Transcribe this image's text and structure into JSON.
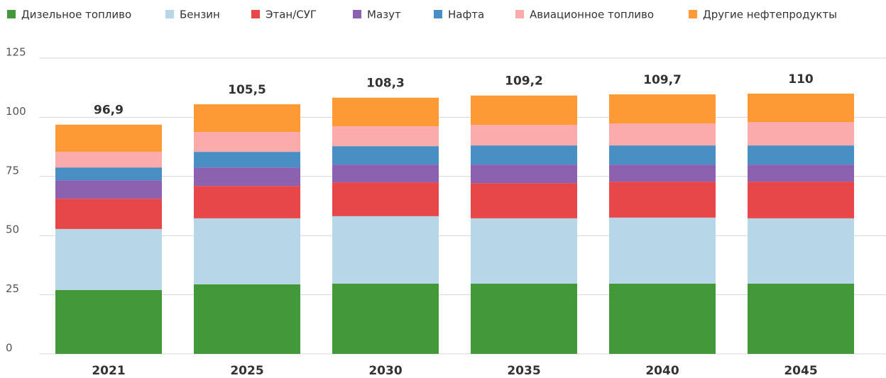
{
  "chart_data": {
    "type": "stacked_bar",
    "categories": [
      "2021",
      "2025",
      "2030",
      "2035",
      "2040",
      "2045"
    ],
    "series": [
      {
        "name": "Дизельное топливо",
        "color": "#43993a",
        "values": [
          27,
          29.4,
          29.7,
          29.7,
          29.7,
          29.7
        ]
      },
      {
        "name": "Бензин",
        "color": "#b7d7e8",
        "values": [
          25.8,
          27.9,
          28.5,
          27.6,
          27.9,
          27.6
        ]
      },
      {
        "name": "Этан/СУГ",
        "color": "#e84749",
        "values": [
          12.8,
          13.7,
          14.3,
          14.9,
          15.2,
          15.5
        ]
      },
      {
        "name": "Мазут",
        "color": "#8c62b0",
        "values": [
          7.8,
          7.8,
          7.5,
          7.8,
          7.2,
          7.2
        ]
      },
      {
        "name": "Нафта",
        "color": "#4a8fc4",
        "values": [
          5.4,
          6.6,
          7.8,
          8.1,
          8.1,
          8.1
        ]
      },
      {
        "name": "Авиационное топливо",
        "color": "#fbabab",
        "values": [
          6.6,
          8.4,
          8.4,
          8.7,
          9.3,
          9.9
        ]
      },
      {
        "name": "Другие нефтепродукты",
        "color": "#fd9a36",
        "values": [
          11.5,
          11.7,
          12.1,
          12.4,
          12.3,
          12
        ]
      }
    ],
    "totals": [
      96.9,
      105.5,
      108.3,
      109.2,
      109.7,
      110
    ],
    "total_labels": [
      "96,9",
      "105,5",
      "108,3",
      "109,2",
      "109,7",
      "110"
    ],
    "ylim": [
      0,
      125
    ],
    "yticks": [
      0,
      25,
      50,
      75,
      100,
      125
    ],
    "grid": true,
    "legend": "top"
  }
}
